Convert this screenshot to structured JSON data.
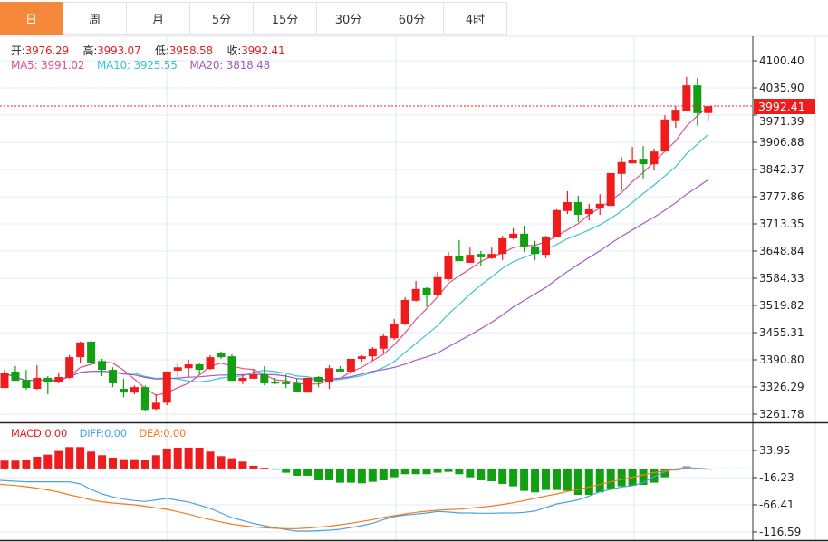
{
  "tabs": [
    {
      "label": "日",
      "active": true
    },
    {
      "label": "周"
    },
    {
      "label": "月"
    },
    {
      "label": "5分"
    },
    {
      "label": "15分"
    },
    {
      "label": "30分"
    },
    {
      "label": "60分"
    },
    {
      "label": "4时"
    }
  ],
  "ohlc_info": {
    "open_label": "开:",
    "open": "3976.29",
    "high_label": "高:",
    "high": "3993.07",
    "low_label": "低:",
    "low": "3958.58",
    "close_label": "收:",
    "close": "3992.41"
  },
  "ma_info": {
    "ma5_label": "MA5:",
    "ma5": "3991.02",
    "ma10_label": "MA10:",
    "ma10": "3925.55",
    "ma20_label": "MA20:",
    "ma20": "3818.48"
  },
  "macd_info": {
    "macd_label": "MACD:",
    "macd": "0.00",
    "diff_label": "DIFF:",
    "diff": "0.00",
    "dea_label": "DEA:",
    "dea": "0.00"
  },
  "colors": {
    "up": "#ee1c1c",
    "down": "#12a012",
    "ma5": "#e0508c",
    "ma10": "#3cc3d3",
    "ma20": "#a45ac4",
    "diff": "#4aa3e0",
    "dea": "#f07a22",
    "active_tab": "#f5883a"
  },
  "current_price": "3992.41",
  "chart_data": [
    {
      "type": "candlestick",
      "ylim": [
        3261.78,
        4100.4
      ],
      "y_ticks": [
        "4100.40",
        "4035.90",
        "3971.39",
        "3906.88",
        "3842.37",
        "3777.86",
        "3713.35",
        "3648.84",
        "3584.33",
        "3519.82",
        "3455.31",
        "3390.80",
        "3326.29",
        "3261.78"
      ],
      "grid": true,
      "ohlc": [
        [
          3324,
          3367,
          3324,
          3359
        ],
        [
          3363,
          3376,
          3341,
          3341
        ],
        [
          3343,
          3367,
          3320,
          3324
        ],
        [
          3322,
          3378,
          3320,
          3348
        ],
        [
          3348,
          3352,
          3309,
          3337
        ],
        [
          3339,
          3361,
          3335,
          3350
        ],
        [
          3348,
          3402,
          3346,
          3397
        ],
        [
          3397,
          3434,
          3384,
          3432
        ],
        [
          3434,
          3438,
          3380,
          3384
        ],
        [
          3388,
          3393,
          3352,
          3367
        ],
        [
          3367,
          3373,
          3326,
          3335
        ],
        [
          3322,
          3346,
          3302,
          3313
        ],
        [
          3313,
          3330,
          3309,
          3326
        ],
        [
          3326,
          3330,
          3270,
          3272
        ],
        [
          3274,
          3309,
          3272,
          3289
        ],
        [
          3289,
          3363,
          3283,
          3363
        ],
        [
          3365,
          3384,
          3350,
          3373
        ],
        [
          3371,
          3391,
          3350,
          3380
        ],
        [
          3380,
          3384,
          3356,
          3367
        ],
        [
          3369,
          3402,
          3367,
          3397
        ],
        [
          3406,
          3410,
          3393,
          3397
        ],
        [
          3399,
          3404,
          3341,
          3341
        ],
        [
          3341,
          3356,
          3333,
          3348
        ],
        [
          3346,
          3369,
          3346,
          3356
        ],
        [
          3356,
          3376,
          3330,
          3335
        ],
        [
          3337,
          3348,
          3333,
          3335
        ],
        [
          3337,
          3356,
          3324,
          3333
        ],
        [
          3335,
          3346,
          3313,
          3315
        ],
        [
          3313,
          3348,
          3313,
          3348
        ],
        [
          3350,
          3352,
          3326,
          3337
        ],
        [
          3337,
          3378,
          3322,
          3371
        ],
        [
          3369,
          3376,
          3363,
          3363
        ],
        [
          3363,
          3393,
          3354,
          3393
        ],
        [
          3393,
          3402,
          3386,
          3399
        ],
        [
          3399,
          3421,
          3388,
          3417
        ],
        [
          3417,
          3453,
          3406,
          3447
        ],
        [
          3442,
          3488,
          3438,
          3477
        ],
        [
          3475,
          3539,
          3473,
          3533
        ],
        [
          3531,
          3578,
          3529,
          3559
        ],
        [
          3561,
          3563,
          3516,
          3544
        ],
        [
          3544,
          3600,
          3541,
          3587
        ],
        [
          3582,
          3647,
          3578,
          3636
        ],
        [
          3636,
          3675,
          3625,
          3625
        ],
        [
          3621,
          3657,
          3621,
          3640
        ],
        [
          3642,
          3649,
          3614,
          3634
        ],
        [
          3632,
          3657,
          3630,
          3642
        ],
        [
          3642,
          3685,
          3627,
          3679
        ],
        [
          3679,
          3703,
          3677,
          3690
        ],
        [
          3690,
          3709,
          3647,
          3660
        ],
        [
          3660,
          3673,
          3627,
          3642
        ],
        [
          3640,
          3685,
          3632,
          3683
        ],
        [
          3683,
          3748,
          3681,
          3746
        ],
        [
          3744,
          3791,
          3737,
          3765
        ],
        [
          3765,
          3780,
          3718,
          3735
        ],
        [
          3737,
          3761,
          3722,
          3748
        ],
        [
          3750,
          3784,
          3735,
          3761
        ],
        [
          3756,
          3834,
          3756,
          3834
        ],
        [
          3832,
          3872,
          3793,
          3860
        ],
        [
          3857,
          3896,
          3857,
          3866
        ],
        [
          3868,
          3898,
          3821,
          3855
        ],
        [
          3855,
          3892,
          3840,
          3885
        ],
        [
          3885,
          3971,
          3885,
          3961
        ],
        [
          3959,
          3993,
          3941,
          3984
        ],
        [
          3982,
          4062,
          3982,
          4042
        ],
        [
          4042,
          4060,
          3946,
          3976
        ],
        [
          3976.29,
          3993.07,
          3958.58,
          3992.41
        ]
      ],
      "series": [
        {
          "name": "MA5",
          "period": 5
        },
        {
          "name": "MA10",
          "period": 10
        },
        {
          "name": "MA20",
          "period": 20
        }
      ]
    },
    {
      "type": "bar+line",
      "ylim": [
        -116.59,
        50
      ],
      "y_ticks": [
        "33.95",
        "-16.23",
        "-66.41",
        "-116.59"
      ],
      "grid": true,
      "macd": [
        15.1,
        15.1,
        16.2,
        22.3,
        26.2,
        32.9,
        40.1,
        40.1,
        31.8,
        25.1,
        20.6,
        17.8,
        17.8,
        16.2,
        25.1,
        37.4,
        39.0,
        39.0,
        39.0,
        31.8,
        23.4,
        19.5,
        13.4,
        5.6,
        2.0,
        -0.5,
        -7.2,
        -12.8,
        -12.8,
        -21.2,
        -21.2,
        -25.6,
        -25.6,
        -26.8,
        -24.0,
        -21.2,
        -15.6,
        -10.0,
        -10.0,
        -10.0,
        -7.2,
        -5.6,
        -10.0,
        -15.6,
        -21.2,
        -22.9,
        -27.9,
        -32.3,
        -40.7,
        -43.5,
        -39.0,
        -39.0,
        -40.7,
        -48.0,
        -48.0,
        -43.5,
        -36.2,
        -32.3,
        -31.2,
        -29.6,
        -25.6,
        -15.6,
        -3.3,
        5.0,
        0.5,
        -0.5
      ],
      "series": [
        {
          "name": "DIFF",
          "values": [
            -21.2,
            -22.9,
            -24,
            -24,
            -24,
            -24,
            -24,
            -27.9,
            -37.9,
            -46.3,
            -51.9,
            -55.8,
            -58.5,
            -60.2,
            -57.4,
            -54.6,
            -58,
            -61.3,
            -66.9,
            -73,
            -81.4,
            -89.8,
            -95.3,
            -100.9,
            -104.8,
            -108.7,
            -112,
            -114.9,
            -114.9,
            -114.3,
            -113.2,
            -111.5,
            -108.2,
            -104.8,
            -100.4,
            -93.7,
            -88.1,
            -85.3,
            -83.6,
            -81.4,
            -78.6,
            -79.7,
            -81.4,
            -81.4,
            -82,
            -82,
            -81.4,
            -81.4,
            -80.3,
            -78,
            -71.4,
            -64.7,
            -61.3,
            -57.4,
            -50.2,
            -42.4,
            -37.9,
            -33.5,
            -31.2,
            -25.6,
            -14.5,
            -5.6,
            0,
            2.2,
            1.1,
            0
          ]
        },
        {
          "name": "DEA",
          "values": [
            -28.4,
            -30.7,
            -32.9,
            -35.7,
            -39,
            -42.9,
            -48,
            -52.4,
            -57.4,
            -60.8,
            -63,
            -64.7,
            -66.4,
            -69.1,
            -71.9,
            -74.7,
            -79.2,
            -83.6,
            -89.2,
            -93.7,
            -98.1,
            -102,
            -104.8,
            -107.1,
            -108.7,
            -109.8,
            -110.4,
            -110.4,
            -109.3,
            -107.6,
            -105.9,
            -103.2,
            -100.4,
            -97,
            -93.7,
            -89.8,
            -86.4,
            -83.1,
            -80.3,
            -78.1,
            -76.4,
            -75.3,
            -74.2,
            -72.5,
            -70.8,
            -68.6,
            -65.8,
            -62.5,
            -58.5,
            -54.6,
            -50.2,
            -46.3,
            -41.8,
            -37.9,
            -33.5,
            -29,
            -24,
            -19.5,
            -15.6,
            -11.2,
            -7.2,
            -3.3,
            -1.1,
            0,
            0,
            0
          ]
        }
      ]
    }
  ]
}
